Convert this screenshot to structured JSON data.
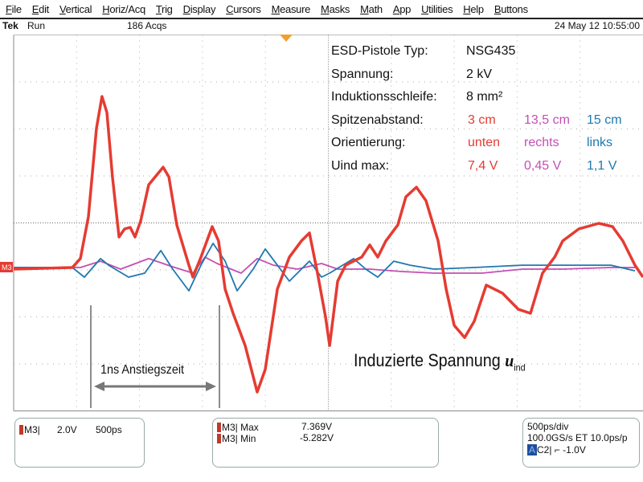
{
  "menu": [
    "File",
    "Edit",
    "Vertical",
    "Horiz/Acq",
    "Trig",
    "Display",
    "Cursors",
    "Measure",
    "Masks",
    "Math",
    "App",
    "Utilities",
    "Help",
    "Buttons"
  ],
  "status": {
    "brand": "Tek",
    "state": "Run",
    "acqs": "186 Acqs",
    "datetime": "24 May 12 10:55:00"
  },
  "channel_marker": "M3",
  "colors": {
    "red": "#e53b32",
    "magenta": "#c44fb4",
    "blue": "#1f78b0",
    "trigger": "#f0a030",
    "grid": "#999999"
  },
  "legend": {
    "rows": [
      {
        "label": "ESD-Pistole Typ:",
        "values": [
          "NSG435"
        ]
      },
      {
        "label": "Spannung:",
        "values": [
          "2 kV"
        ]
      },
      {
        "label": "Induktionsschleife:",
        "values": [
          "8 mm²"
        ]
      },
      {
        "label": "Spitzenabstand:",
        "values": [
          "3 cm",
          "13,5 cm",
          "15 cm"
        ]
      },
      {
        "label": "Orientierung:",
        "values": [
          "unten",
          "rechts",
          "links"
        ]
      },
      {
        "label": "Uind max:",
        "values": [
          "7,4 V",
          "0,45 V",
          "1,1 V"
        ]
      }
    ]
  },
  "annotations": {
    "rise_time": "1ns Anstiegszeit",
    "induced_voltage": "Induzierte Spannung ",
    "u": "u",
    "ind": "ind"
  },
  "panels": {
    "channel": {
      "name": "M3|",
      "scale": "2.0V",
      "time": "500ps"
    },
    "measure": [
      {
        "name": "M3| Max",
        "value": "7.369V"
      },
      {
        "name": "M3| Min",
        "value": "-5.282V"
      }
    ],
    "timebase": {
      "line1": "500ps/div",
      "line2": "100.0GS/s ET 10.0ps/p",
      "trig_badge": "A",
      "trig": "C2| ⌐ -1.0V"
    }
  },
  "chart_data": {
    "type": "line",
    "x_unit": "ns",
    "y_unit": "V",
    "xlim": [
      0,
      5
    ],
    "x_div": "500ps/div",
    "y_div": "2.0V/div",
    "ylim": [
      -9,
      7
    ],
    "grid": true,
    "series": [
      {
        "color": "red",
        "t": [
          0,
          0.466,
          0.53,
          0.594,
          0.658,
          0.702,
          0.741,
          0.785,
          0.837,
          0.881,
          0.926,
          0.964,
          1.009,
          1.073,
          1.188,
          1.233,
          1.296,
          1.392,
          1.424,
          1.488,
          1.577,
          1.628,
          1.68,
          1.743,
          1.839,
          1.935,
          1.999,
          2.095,
          2.19,
          2.286,
          2.35,
          2.414,
          2.478,
          2.51,
          2.574,
          2.637,
          2.765,
          2.829,
          2.893,
          2.957,
          3.052,
          3.116,
          3.2,
          3.276,
          3.372,
          3.436,
          3.5,
          3.583,
          3.659,
          3.755,
          3.819,
          3.883,
          4.01,
          4.106,
          4.202,
          4.298,
          4.362,
          4.49,
          4.649,
          4.758,
          4.84,
          4.936,
          5.0
        ],
        "v": [
          -0.07,
          0,
          0.38,
          2.16,
          5.92,
          7.28,
          6.6,
          3.86,
          1.3,
          1.64,
          1.71,
          1.3,
          1.98,
          3.52,
          4.27,
          3.86,
          1.81,
          0.1,
          -0.41,
          0.44,
          1.74,
          1.13,
          -0.92,
          -1.95,
          -3.32,
          -5.3,
          -4.34,
          -0.92,
          0.44,
          1.13,
          1.47,
          -0.24,
          -2.12,
          -3.32,
          -0.58,
          0.1,
          0.44,
          0.96,
          0.44,
          1.13,
          1.81,
          3.01,
          3.42,
          2.84,
          1.13,
          -0.92,
          -2.46,
          -2.98,
          -2.29,
          -0.75,
          -0.92,
          -1.09,
          -1.78,
          -1.95,
          -0.24,
          0.44,
          1.13,
          1.64,
          1.88,
          1.74,
          1.13,
          0.1,
          -0.41
        ]
      },
      {
        "color": "blue",
        "t": [
          0,
          0.466,
          0.562,
          0.69,
          0.754,
          0.913,
          1.041,
          1.169,
          1.264,
          1.392,
          1.488,
          1.584,
          1.68,
          1.775,
          1.903,
          1.999,
          2.095,
          2.19,
          2.286,
          2.35,
          2.446,
          2.51,
          2.701,
          2.797,
          2.893,
          3.02,
          3.148,
          3.34,
          3.659,
          4.042,
          4.745,
          4.936
        ],
        "v": [
          0,
          0,
          -0.41,
          0.38,
          0.1,
          -0.41,
          -0.24,
          0.72,
          -0.07,
          -0.99,
          0.1,
          1.03,
          0.27,
          -0.99,
          -0.07,
          0.79,
          0.1,
          -0.58,
          -0.07,
          0.27,
          -0.41,
          -0.24,
          0.38,
          -0.07,
          -0.41,
          0.27,
          0.1,
          -0.07,
          0,
          0.1,
          0.1,
          -0.14
        ]
      },
      {
        "color": "magenta",
        "t": [
          0,
          0.53,
          0.69,
          0.85,
          1.073,
          1.264,
          1.424,
          1.52,
          1.616,
          1.807,
          1.935,
          2.063,
          2.254,
          2.446,
          2.574,
          2.829,
          3.084,
          3.34,
          3.723,
          4.042,
          4.362,
          4.745,
          4.936
        ],
        "v": [
          0,
          0,
          0.27,
          -0.07,
          0.38,
          0.03,
          -0.24,
          0.44,
          0.17,
          -0.24,
          0.38,
          0.1,
          -0.07,
          0.17,
          -0.07,
          -0.07,
          -0.17,
          -0.24,
          -0.24,
          -0.07,
          -0.07,
          0,
          0
        ]
      }
    ]
  }
}
